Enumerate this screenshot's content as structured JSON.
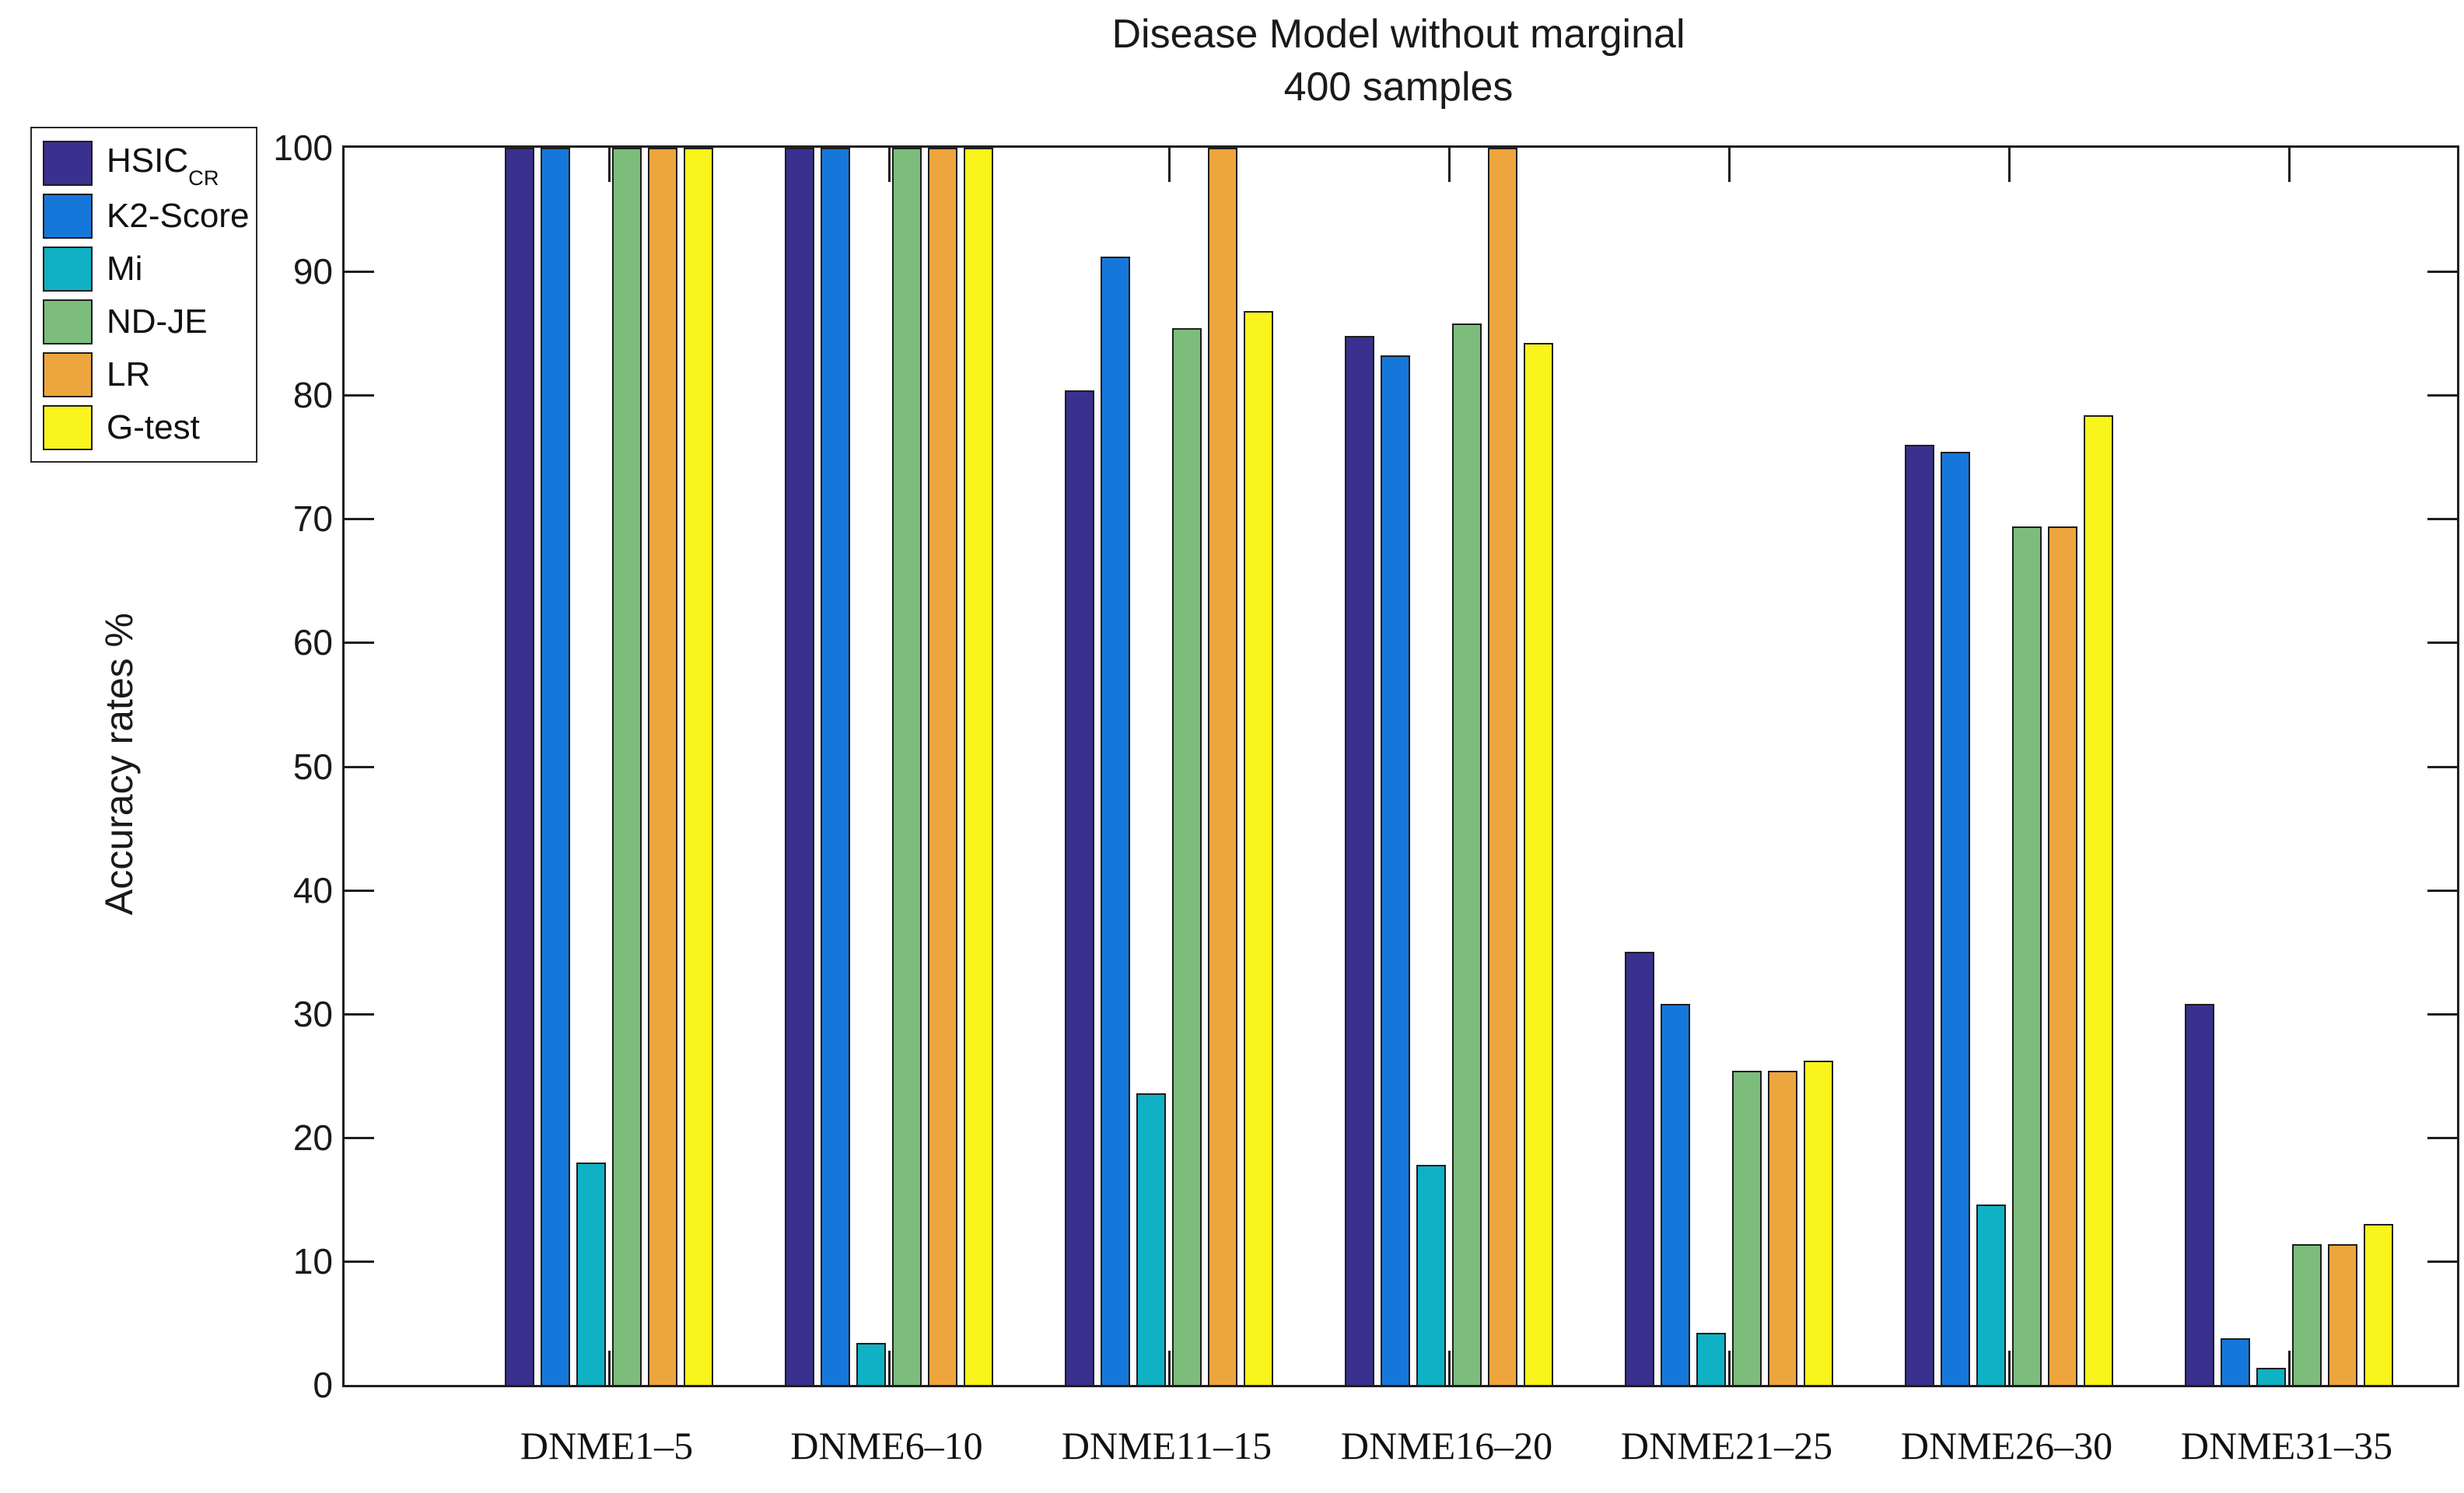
{
  "chart_data": {
    "type": "bar",
    "title": "Disease Model without marginal",
    "subtitle": "400 samples",
    "ylabel": "Accuracy rates %",
    "xlabel": "",
    "ylim": [
      0,
      100
    ],
    "yticks": [
      0,
      10,
      20,
      30,
      40,
      50,
      60,
      70,
      80,
      90,
      100
    ],
    "grid": false,
    "legend_position": "top-left",
    "categories": [
      "DNME1–5",
      "DNME6–10",
      "DNME11–15",
      "DNME16–20",
      "DNME21–25",
      "DNME26–30",
      "DNME31–35"
    ],
    "series": [
      {
        "name": "HSIC",
        "sub": "CR",
        "legend_label": "HSIC_CR",
        "color": "#39308f",
        "values": [
          100,
          100,
          80.4,
          84.8,
          35.0,
          76.0,
          30.8
        ]
      },
      {
        "name": "K2-Score",
        "sub": "",
        "legend_label": "K2-Score",
        "color": "#1677db",
        "values": [
          100,
          100,
          91.2,
          83.2,
          30.8,
          75.4,
          3.8
        ]
      },
      {
        "name": "Mi",
        "sub": "",
        "legend_label": "Mi",
        "color": "#0fb1c5",
        "values": [
          18.0,
          3.4,
          23.6,
          17.8,
          4.2,
          14.6,
          1.4
        ]
      },
      {
        "name": "ND-JE",
        "sub": "",
        "legend_label": "ND-JE",
        "color": "#7cbd7d",
        "values": [
          100,
          100,
          85.4,
          85.8,
          25.4,
          69.4,
          11.4
        ]
      },
      {
        "name": "LR",
        "sub": "",
        "legend_label": "LR",
        "color": "#eda63d",
        "values": [
          100,
          100,
          100,
          100,
          25.4,
          69.4,
          11.4
        ]
      },
      {
        "name": "G-test",
        "sub": "",
        "legend_label": "G-test",
        "color": "#f9f41b",
        "values": [
          100,
          100,
          86.8,
          84.2,
          26.2,
          78.4,
          13.0
        ]
      }
    ]
  },
  "colors": {
    "axis": "#1f1f1f",
    "text": "#1a1a1a",
    "background": "#ffffff"
  }
}
